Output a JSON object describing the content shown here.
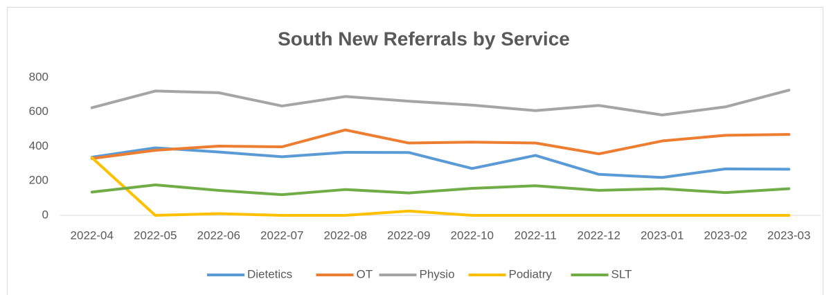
{
  "chart_data": {
    "type": "line",
    "title": "South New Referrals by Service",
    "categories": [
      "2022-04",
      "2022-05",
      "2022-06",
      "2022-07",
      "2022-08",
      "2022-09",
      "2022-10",
      "2022-11",
      "2022-12",
      "2023-01",
      "2023-02",
      "2023-03"
    ],
    "series": [
      {
        "name": "Dietetics",
        "color": "#5b9bd5",
        "values": [
          338,
          392,
          368,
          340,
          366,
          365,
          272,
          348,
          238,
          220,
          270,
          268
        ]
      },
      {
        "name": "OT",
        "color": "#ed7d31",
        "values": [
          330,
          378,
          402,
          398,
          496,
          420,
          425,
          420,
          357,
          432,
          465,
          470
        ]
      },
      {
        "name": "Physio",
        "color": "#a5a5a5",
        "values": [
          625,
          722,
          712,
          635,
          690,
          663,
          640,
          608,
          638,
          583,
          630,
          727
        ]
      },
      {
        "name": "Podiatry",
        "color": "#ffc000",
        "values": [
          335,
          0,
          10,
          0,
          0,
          25,
          0,
          0,
          0,
          0,
          0,
          0
        ]
      },
      {
        "name": "SLT",
        "color": "#70ad47",
        "values": [
          135,
          177,
          145,
          120,
          150,
          130,
          157,
          172,
          145,
          155,
          132,
          155
        ]
      }
    ],
    "ylim": [
      0,
      800
    ],
    "yticks": [
      0,
      200,
      400,
      600,
      800
    ],
    "grid": false,
    "legend": "bottom"
  }
}
